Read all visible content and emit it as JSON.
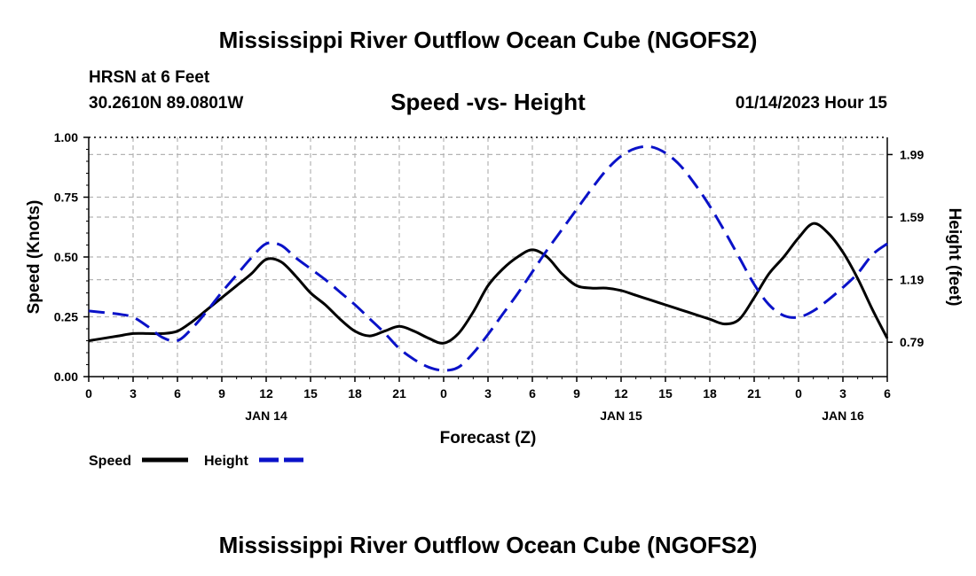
{
  "page": {
    "title_top": "Mississippi River Outflow Ocean Cube (NGOFS2)",
    "title_bottom": "Mississippi River Outflow Ocean Cube (NGOFS2)",
    "station": "HRSN at 6 Feet",
    "coords": "30.2610N  89.0801W",
    "subtitle": "Speed -vs- Height",
    "datetime": "01/14/2023 Hour 15"
  },
  "colors": {
    "speed": "#000000",
    "height": "#0a12c8",
    "grid": "#b4b4b4"
  },
  "chart_data": {
    "type": "line",
    "xlabel": "Forecast (Z)",
    "ylabel": "Speed (Knots)",
    "y2label": "Height (feet)",
    "xlim": [
      0,
      54
    ],
    "ylim": [
      0,
      1.0
    ],
    "y2lim": [
      0.57,
      2.1
    ],
    "x_ticks": [
      0,
      3,
      6,
      9,
      12,
      15,
      18,
      21,
      24,
      27,
      30,
      33,
      36,
      39,
      42,
      45,
      48,
      51,
      54
    ],
    "x_tick_labels": [
      "0",
      "3",
      "6",
      "9",
      "12",
      "15",
      "18",
      "21",
      "0",
      "3",
      "6",
      "9",
      "12",
      "15",
      "18",
      "21",
      "0",
      "3",
      "6"
    ],
    "y_ticks": [
      0,
      0.25,
      0.5,
      0.75,
      1.0
    ],
    "y_tick_labels": [
      "0.00",
      "0.25",
      "0.50",
      "0.75",
      "1.00"
    ],
    "y2_ticks": [
      0.79,
      1.19,
      1.59,
      1.99
    ],
    "y2_tick_labels": [
      "0.79",
      "1.19",
      "1.59",
      "1.99"
    ],
    "date_labels": [
      {
        "x": 12,
        "label": "JAN 14"
      },
      {
        "x": 36,
        "label": "JAN 15"
      },
      {
        "x": 51,
        "label": "JAN 16"
      }
    ],
    "grid": true,
    "legend": {
      "position": "bottom-left",
      "items": [
        "Speed",
        "Height"
      ]
    },
    "series": [
      {
        "name": "Speed",
        "axis": "left",
        "x": [
          0,
          1,
          2,
          3,
          4,
          5,
          6,
          7,
          8,
          9,
          10,
          11,
          12,
          13,
          14,
          15,
          16,
          17,
          18,
          19,
          20,
          21,
          22,
          23,
          24,
          25,
          26,
          27,
          28,
          29,
          30,
          31,
          32,
          33,
          34,
          35,
          36,
          37,
          38,
          39,
          40,
          41,
          42,
          43,
          44,
          45,
          46,
          47,
          48,
          49,
          50,
          51,
          52,
          53,
          54
        ],
        "values": [
          0.15,
          0.16,
          0.17,
          0.18,
          0.18,
          0.18,
          0.19,
          0.23,
          0.28,
          0.33,
          0.38,
          0.43,
          0.49,
          0.48,
          0.42,
          0.35,
          0.3,
          0.24,
          0.19,
          0.17,
          0.19,
          0.21,
          0.19,
          0.16,
          0.14,
          0.18,
          0.27,
          0.38,
          0.45,
          0.5,
          0.53,
          0.5,
          0.43,
          0.38,
          0.37,
          0.37,
          0.36,
          0.34,
          0.32,
          0.3,
          0.28,
          0.26,
          0.24,
          0.22,
          0.24,
          0.33,
          0.43,
          0.5,
          0.58,
          0.64,
          0.6,
          0.52,
          0.41,
          0.28,
          0.16
        ]
      },
      {
        "name": "Height",
        "axis": "right",
        "x": [
          0,
          1,
          2,
          3,
          4,
          5,
          6,
          7,
          8,
          9,
          10,
          11,
          12,
          13,
          14,
          15,
          16,
          17,
          18,
          19,
          20,
          21,
          22,
          23,
          24,
          25,
          26,
          27,
          28,
          29,
          30,
          31,
          32,
          33,
          34,
          35,
          36,
          37,
          38,
          39,
          40,
          41,
          42,
          43,
          44,
          45,
          46,
          47,
          48,
          49,
          50,
          51,
          52,
          53,
          54
        ],
        "values": [
          0.99,
          0.98,
          0.97,
          0.95,
          0.89,
          0.82,
          0.8,
          0.88,
          0.99,
          1.11,
          1.22,
          1.33,
          1.42,
          1.41,
          1.33,
          1.26,
          1.19,
          1.11,
          1.03,
          0.94,
          0.85,
          0.75,
          0.68,
          0.63,
          0.61,
          0.63,
          0.72,
          0.84,
          0.97,
          1.1,
          1.24,
          1.38,
          1.51,
          1.64,
          1.77,
          1.89,
          1.98,
          2.03,
          2.04,
          2.0,
          1.92,
          1.8,
          1.66,
          1.5,
          1.33,
          1.16,
          1.03,
          0.96,
          0.95,
          0.99,
          1.06,
          1.14,
          1.23,
          1.35,
          1.42
        ]
      }
    ]
  }
}
